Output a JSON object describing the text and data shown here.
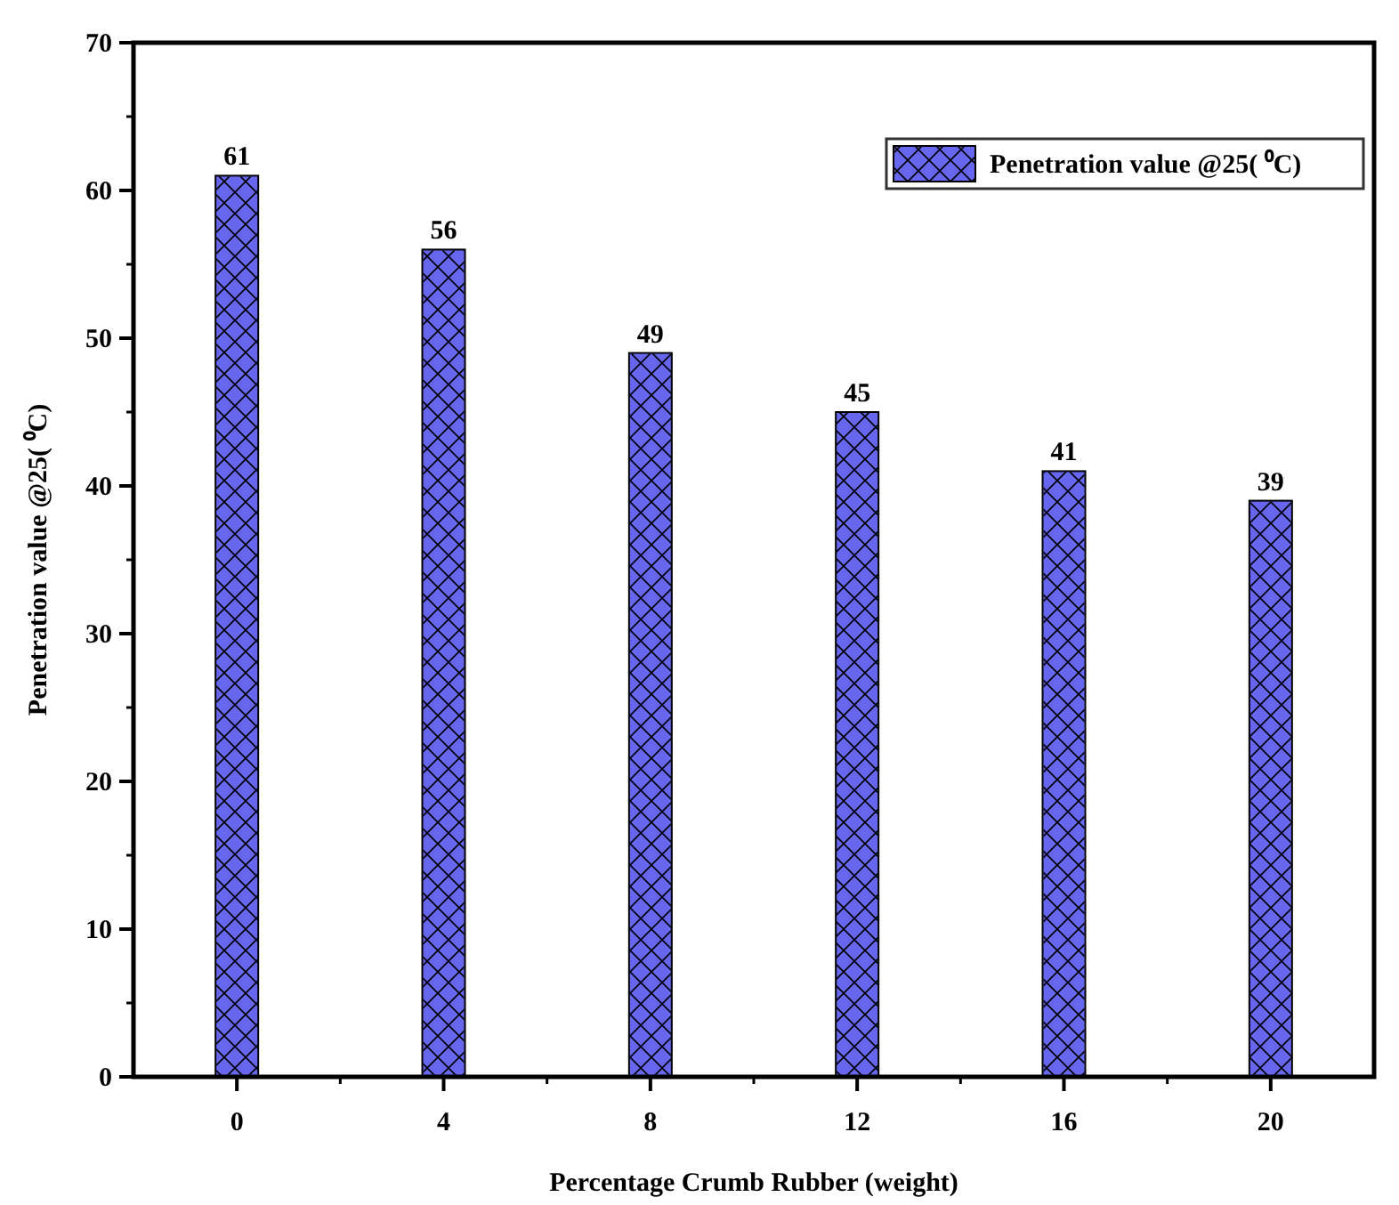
{
  "chart_data": {
    "type": "bar",
    "xlabel": "Percentage Crumb Rubber (weight)",
    "ylabel": "Penetration value @25( ⁰C)",
    "categories": [
      "0",
      "4",
      "8",
      "12",
      "16",
      "20"
    ],
    "series": [
      {
        "name": "Penetration value @25( ⁰C)",
        "color": "#6666ee",
        "values": [
          61,
          56,
          49,
          45,
          41,
          39
        ]
      }
    ],
    "ylim": [
      0,
      70
    ],
    "yticks": [
      0,
      10,
      20,
      30,
      40,
      50,
      60,
      70
    ],
    "grid": false,
    "legend": "top right",
    "data_labels": true
  }
}
